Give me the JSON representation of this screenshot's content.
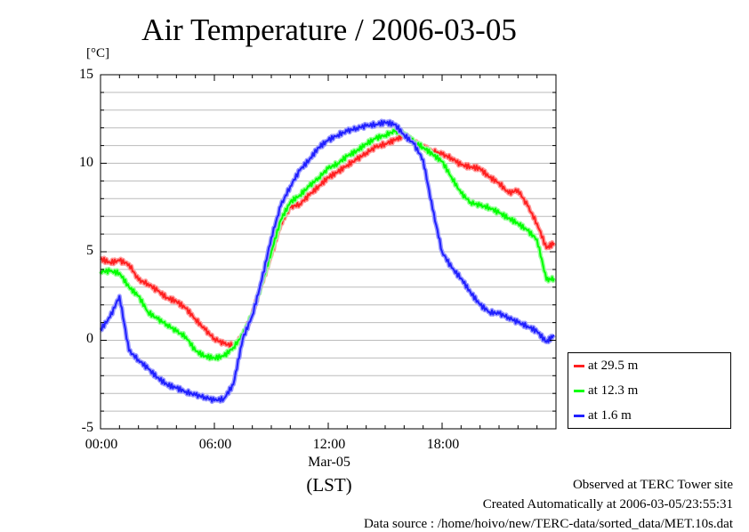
{
  "chart_data": {
    "type": "line",
    "title": "Air Temperature / 2006-03-05",
    "yunit": "[°C]",
    "ylim": [
      -5,
      15
    ],
    "yticks": [
      "15",
      "10",
      "5",
      "0",
      "-5"
    ],
    "xlim": [
      0,
      24
    ],
    "xticks": [
      "00:00",
      "06:00",
      "12:00",
      "18:00"
    ],
    "xdate": "Mar-05",
    "xlabel": "(LST)",
    "grid": true,
    "legend_position": "bottom-right",
    "x": [
      0,
      0.5,
      1,
      1.5,
      2,
      2.5,
      3,
      3.5,
      4,
      4.5,
      5,
      5.5,
      6,
      6.5,
      7,
      7.5,
      8,
      8.5,
      9,
      9.5,
      10,
      10.5,
      11,
      11.5,
      12,
      12.5,
      13,
      13.5,
      14,
      14.5,
      15,
      15.5,
      16,
      16.5,
      17,
      17.5,
      18,
      18.5,
      19,
      19.5,
      20,
      20.5,
      21,
      21.5,
      22,
      22.5,
      23,
      23.5,
      23.9
    ],
    "series": [
      {
        "name": "at 29.5 m",
        "color": "#ff2020",
        "values": [
          4.6,
          4.4,
          4.5,
          4.3,
          3.4,
          3.2,
          2.8,
          2.4,
          2.2,
          1.8,
          1.2,
          0.6,
          0.1,
          -0.2,
          -0.3,
          0.2,
          1.5,
          3.2,
          4.8,
          6.6,
          7.5,
          7.7,
          8.2,
          8.7,
          9.2,
          9.5,
          9.9,
          10.2,
          10.6,
          10.9,
          11.1,
          11.3,
          11.6,
          11.2,
          10.9,
          10.7,
          10.5,
          10.3,
          9.9,
          9.8,
          9.7,
          9.2,
          8.9,
          8.3,
          8.5,
          7.6,
          6.6,
          5.2,
          5.5
        ]
      },
      {
        "name": "at 12.3 m",
        "color": "#00ff00",
        "values": [
          3.9,
          3.9,
          3.8,
          3.0,
          2.5,
          1.6,
          1.2,
          0.9,
          0.5,
          0.2,
          -0.6,
          -0.9,
          -1.0,
          -0.9,
          -0.4,
          0.3,
          1.5,
          3.2,
          5.0,
          6.8,
          7.8,
          8.2,
          8.7,
          9.2,
          9.7,
          10.0,
          10.4,
          10.7,
          11.1,
          11.4,
          11.6,
          11.8,
          11.7,
          11.2,
          10.9,
          10.5,
          10.1,
          9.2,
          8.3,
          7.8,
          7.6,
          7.5,
          7.2,
          6.9,
          6.6,
          6.2,
          5.7,
          3.4,
          3.5
        ]
      },
      {
        "name": "at 1.6 m",
        "color": "#2020ff",
        "values": [
          0.6,
          1.3,
          2.5,
          -0.6,
          -1.1,
          -1.6,
          -2.1,
          -2.5,
          -2.7,
          -2.9,
          -3.1,
          -3.2,
          -3.4,
          -3.3,
          -2.5,
          0.1,
          1.4,
          3.4,
          5.8,
          7.6,
          8.7,
          9.6,
          10.2,
          10.9,
          11.3,
          11.6,
          11.8,
          12.0,
          12.1,
          12.2,
          12.3,
          12.2,
          11.6,
          11.1,
          10.2,
          7.4,
          5.0,
          4.1,
          3.5,
          2.7,
          2.0,
          1.6,
          1.5,
          1.3,
          1.0,
          0.8,
          0.5,
          -0.1,
          0.3
        ]
      }
    ]
  },
  "footer": {
    "observed": "Observed at TERC Tower site",
    "created": "Created Automatically at 2006-03-05/23:55:31",
    "source": "Data source : /home/hoivo/new/TERC-data/sorted_data/MET.10s.dat"
  }
}
